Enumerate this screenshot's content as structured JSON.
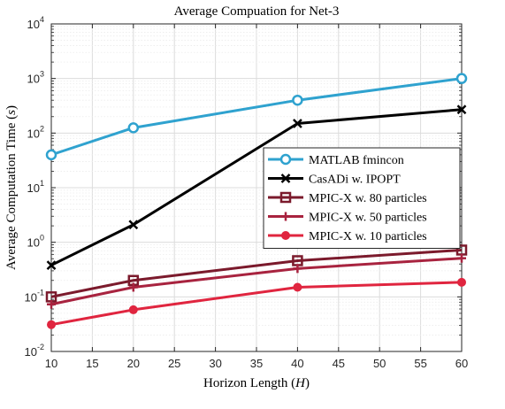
{
  "chart_data": {
    "type": "line",
    "title": "Average Compuation for Net-3",
    "xlabel": "Horizon Length (H)",
    "ylabel": "Average Computation Time (s)",
    "xlim": [
      10,
      60
    ],
    "ylim": [
      0.01,
      10000
    ],
    "yscale": "log",
    "grid": true,
    "legend_position": "right",
    "x_ticks": [
      "10",
      "15",
      "20",
      "25",
      "30",
      "35",
      "40",
      "45",
      "50",
      "55",
      "60"
    ],
    "y_ticks": [
      {
        "base": "10",
        "exp": "-2"
      },
      {
        "base": "10",
        "exp": "-1"
      },
      {
        "base": "10",
        "exp": "0"
      },
      {
        "base": "10",
        "exp": "1"
      },
      {
        "base": "10",
        "exp": "2"
      },
      {
        "base": "10",
        "exp": "3"
      },
      {
        "base": "10",
        "exp": "4"
      }
    ],
    "x": [
      10,
      20,
      40,
      60
    ],
    "series": [
      {
        "name": "MATLAB fmincon",
        "values": [
          40,
          125,
          400,
          1000
        ],
        "color": "#2fa2cf",
        "marker": "circle-open"
      },
      {
        "name": "CasADi w. IPOPT",
        "values": [
          0.38,
          2.1,
          150,
          270
        ],
        "color": "#000000",
        "marker": "x"
      },
      {
        "name": "MPIC-X w. 80 particles",
        "values": [
          0.1,
          0.2,
          0.46,
          0.72
        ],
        "color": "#7b1a2c",
        "marker": "square"
      },
      {
        "name": "MPIC-X w. 50 particles",
        "values": [
          0.073,
          0.15,
          0.33,
          0.51
        ],
        "color": "#a8233f",
        "marker": "plus"
      },
      {
        "name": "MPIC-X w. 10 particles",
        "values": [
          0.031,
          0.058,
          0.15,
          0.185
        ],
        "color": "#e0253f",
        "marker": "dot"
      }
    ]
  }
}
